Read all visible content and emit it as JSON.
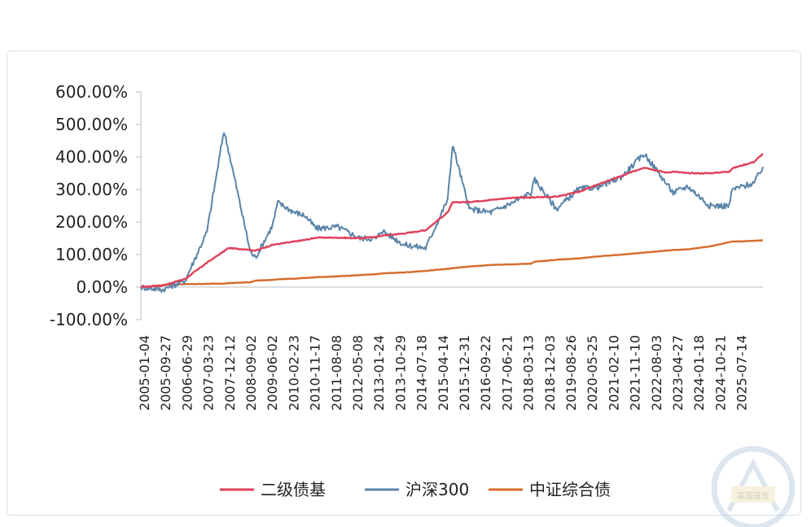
{
  "chart_data": {
    "type": "line",
    "ylim": [
      -100,
      600
    ],
    "ytick_values": [
      600,
      500,
      400,
      300,
      200,
      100,
      0,
      -100
    ],
    "ytick_labels": [
      "600.00%",
      "500.00%",
      "400.00%",
      "300.00%",
      "200.00%",
      "100.00%",
      "0.00%",
      "-100.00%"
    ],
    "xtick_labels": [
      "2005-01-04",
      "2005-09-27",
      "2006-06-29",
      "2007-03-23",
      "2007-12-12",
      "2008-09-02",
      "2009-06-02",
      "2010-02-23",
      "2010-11-17",
      "2011-08-08",
      "2012-05-08",
      "2013-01-24",
      "2013-10-29",
      "2014-07-18",
      "2015-04-14",
      "2015-12-31",
      "2016-09-22",
      "2017-06-21",
      "2018-03-13",
      "2018-12-03",
      "2019-08-26",
      "2020-05-25",
      "2021-02-10",
      "2021-11-10",
      "2022-08-03",
      "2023-04-27",
      "2024-01-18",
      "2024-10-21",
      "2025-07-14"
    ],
    "grid": false,
    "legend_position": "bottom",
    "x": [
      "2005-01-04",
      "2005-09-27",
      "2006-06-29",
      "2007-03-23",
      "2007-10-16",
      "2007-12-12",
      "2008-09-02",
      "2008-11-04",
      "2009-06-02",
      "2009-08-04",
      "2010-02-23",
      "2010-07-02",
      "2010-11-17",
      "2011-08-08",
      "2012-05-08",
      "2012-12-01",
      "2013-01-24",
      "2013-10-29",
      "2014-07-18",
      "2015-04-14",
      "2015-06-12",
      "2015-12-31",
      "2016-09-22",
      "2017-06-21",
      "2018-01-24",
      "2018-03-13",
      "2018-12-03",
      "2019-08-26",
      "2020-05-25",
      "2021-02-10",
      "2021-11-10",
      "2022-08-03",
      "2022-10-31",
      "2023-04-27",
      "2024-01-18",
      "2024-09-13",
      "2024-10-21",
      "2025-07-14",
      "2025-10-31"
    ],
    "series": [
      {
        "name": "二级债基",
        "color": "#e0405a",
        "values": [
          0,
          5,
          25,
          75,
          110,
          120,
          115,
          112,
          130,
          132,
          140,
          145,
          152,
          152,
          150,
          155,
          158,
          165,
          175,
          230,
          260,
          262,
          268,
          275,
          275,
          276,
          278,
          292,
          318,
          342,
          368,
          352,
          355,
          350,
          350,
          355,
          365,
          385,
          410
        ]
      },
      {
        "name": "沪深300",
        "color": "#5b84a8",
        "values": [
          0,
          -8,
          20,
          170,
          480,
          420,
          110,
          90,
          190,
          260,
          230,
          220,
          180,
          185,
          150,
          150,
          175,
          130,
          120,
          270,
          440,
          240,
          230,
          260,
          290,
          330,
          240,
          300,
          310,
          340,
          410,
          320,
          290,
          310,
          250,
          250,
          300,
          320,
          370
        ]
      },
      {
        "name": "中证综合债",
        "color": "#d66b2c",
        "values": [
          0,
          6,
          9,
          10,
          11,
          12,
          15,
          20,
          22,
          24,
          26,
          28,
          30,
          33,
          37,
          40,
          42,
          45,
          50,
          56,
          58,
          63,
          68,
          70,
          72,
          78,
          84,
          88,
          95,
          100,
          106,
          112,
          114,
          116,
          125,
          138,
          140,
          142,
          144
        ]
      }
    ]
  },
  "watermark": {
    "text": "富国基金"
  }
}
